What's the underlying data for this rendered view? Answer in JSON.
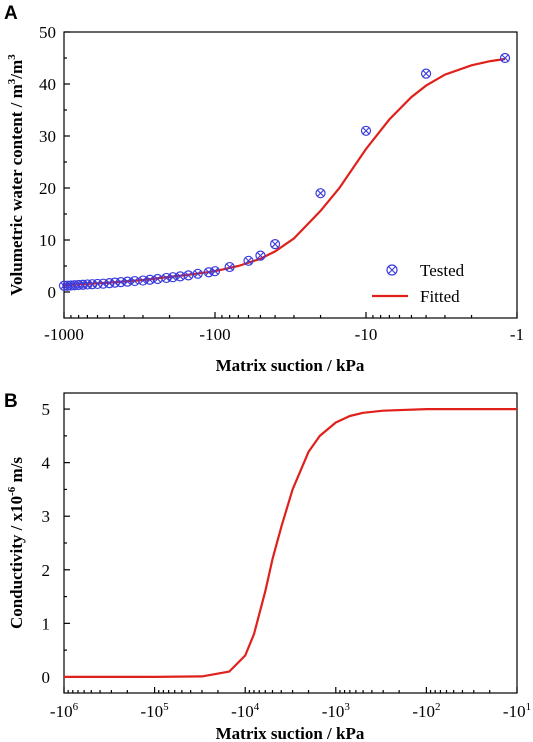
{
  "chart_data": [
    {
      "panel": "A",
      "type": "line",
      "xlabel": "Matrix suction / kPa",
      "ylabel": "Volumetric water content / m³/m³",
      "xscale": "log (negative values)",
      "xlim": [
        -1000,
        -1
      ],
      "ylim": [
        -5,
        50
      ],
      "xticks": [
        "-1000",
        "-100",
        "-10",
        "-1"
      ],
      "yticks": [
        "0",
        "10",
        "20",
        "30",
        "40",
        "50"
      ],
      "legend_position": "bottom-right",
      "grid": false,
      "series": [
        {
          "name": "Tested",
          "marker": "circle-x",
          "color": "#3b3bdc",
          "x": [
            -1000,
            -950,
            -900,
            -850,
            -800,
            -750,
            -700,
            -650,
            -600,
            -550,
            -500,
            -460,
            -420,
            -380,
            -340,
            -300,
            -270,
            -240,
            -210,
            -190,
            -170,
            -150,
            -130,
            -110,
            -100,
            -80,
            -60,
            -50,
            -40,
            -20,
            -10,
            -4,
            -1.2
          ],
          "y": [
            1.2,
            1.2,
            1.25,
            1.3,
            1.35,
            1.4,
            1.45,
            1.5,
            1.55,
            1.6,
            1.7,
            1.8,
            1.9,
            2.0,
            2.1,
            2.2,
            2.35,
            2.5,
            2.7,
            2.85,
            3.0,
            3.2,
            3.5,
            3.8,
            4.0,
            4.8,
            6.0,
            7.0,
            9.2,
            19.0,
            31.0,
            42.0,
            45.0
          ]
        },
        {
          "name": "Fitted",
          "marker": "line",
          "color": "#e0201b",
          "x": [
            -1000,
            -500,
            -300,
            -200,
            -150,
            -100,
            -70,
            -50,
            -40,
            -30,
            -20,
            -15,
            -10,
            -7,
            -5,
            -4,
            -3,
            -2,
            -1.5,
            -1.2
          ],
          "y": [
            1.3,
            1.8,
            2.3,
            2.9,
            3.3,
            4.0,
            5.0,
            6.4,
            7.8,
            10.3,
            15.6,
            20.0,
            27.5,
            33.2,
            37.5,
            39.7,
            41.8,
            43.6,
            44.4,
            44.8
          ]
        }
      ]
    },
    {
      "panel": "B",
      "type": "line",
      "xlabel": "Matrix suction / kPa",
      "ylabel": "Conductivity / x10⁻⁶ m/s",
      "xscale": "log (negative values)",
      "xlim": [
        -1000000,
        -10
      ],
      "ylim": [
        -0.3,
        5.3
      ],
      "xticks": [
        "-10^6",
        "-10^5",
        "-10^4",
        "-10^3",
        "-10^2",
        "-10^1"
      ],
      "yticks": [
        "0",
        "1",
        "2",
        "3",
        "4",
        "5"
      ],
      "grid": false,
      "series": [
        {
          "color": "#e0201b",
          "x": [
            -1000000,
            -100000,
            -30000,
            -15000,
            -10000,
            -8000,
            -6000,
            -5000,
            -4000,
            -3000,
            -2000,
            -1500,
            -1000,
            -700,
            -500,
            -300,
            -100,
            -10
          ],
          "y": [
            0,
            0,
            0.01,
            0.1,
            0.4,
            0.8,
            1.6,
            2.2,
            2.8,
            3.5,
            4.2,
            4.5,
            4.75,
            4.87,
            4.93,
            4.97,
            5.0,
            5.0
          ]
        }
      ]
    }
  ],
  "panels": {
    "a": {
      "letter": "A",
      "xticks": [
        "-1000",
        "-100",
        "-10",
        "-1"
      ],
      "yticks": [
        "0",
        "10",
        "20",
        "30",
        "40",
        "50"
      ],
      "xlabel": "Matrix suction / kPa",
      "ylabel_main": "Volumetric water content / m",
      "ylabel_sup1": "3",
      "ylabel_mid": "/m",
      "ylabel_sup2": "3",
      "legend": {
        "tested": "Tested",
        "fitted": "Fitted"
      }
    },
    "b": {
      "letter": "B",
      "xtick_base": "-10",
      "xtick_exps": [
        "6",
        "5",
        "4",
        "3",
        "2",
        "1"
      ],
      "yticks": [
        "0",
        "1",
        "2",
        "3",
        "4",
        "5"
      ],
      "xlabel": "Matrix suction / kPa",
      "ylabel_main": "Conductivity / x10",
      "ylabel_sup": "-6",
      "ylabel_end": " m/s"
    }
  },
  "colors": {
    "tested": "#3b3bdc",
    "fitted": "#e0201b",
    "axis": "#000000"
  }
}
